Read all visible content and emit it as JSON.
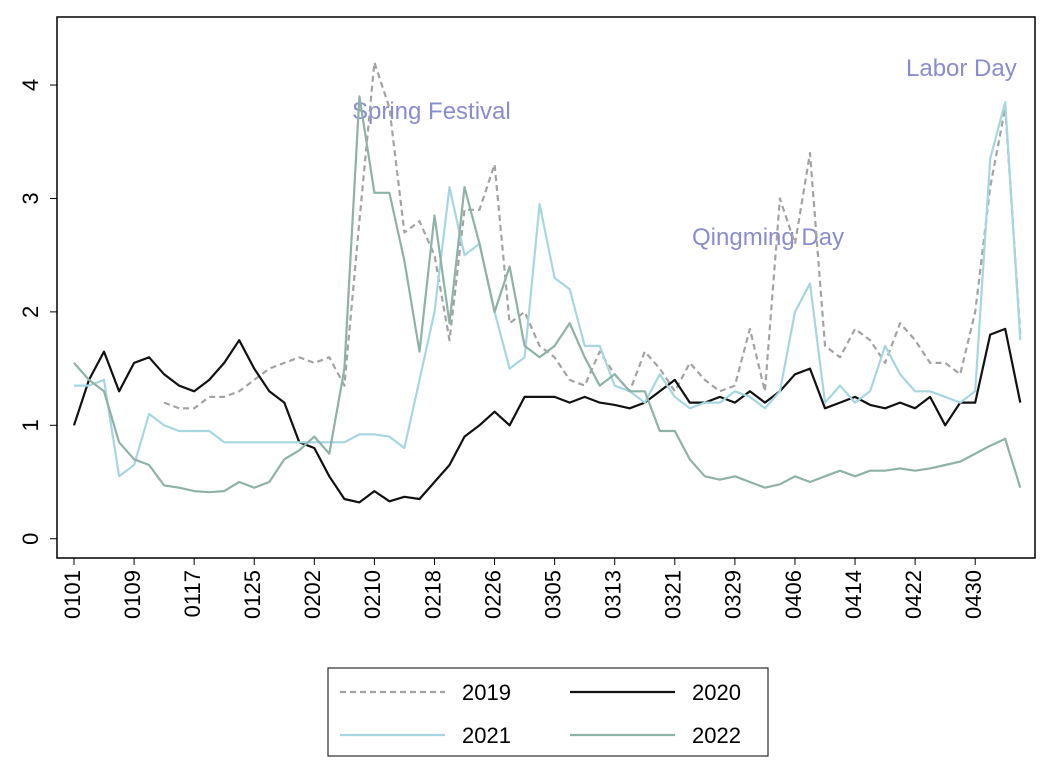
{
  "chart_data": {
    "type": "line",
    "categories": [
      "0101",
      null,
      null,
      null,
      "0109",
      null,
      null,
      null,
      "0117",
      null,
      null,
      null,
      "0125",
      null,
      null,
      null,
      "0202",
      null,
      null,
      null,
      "0210",
      null,
      null,
      null,
      "0218",
      null,
      null,
      null,
      "0226",
      null,
      null,
      null,
      "0305",
      null,
      null,
      null,
      "0313",
      null,
      null,
      null,
      "0321",
      null,
      null,
      null,
      "0329",
      null,
      null,
      null,
      "0406",
      null,
      null,
      null,
      "0414",
      null,
      null,
      null,
      "0422",
      null,
      null,
      null,
      "0430",
      null,
      null,
      null
    ],
    "series": [
      {
        "name": "2019",
        "color": "#a3a3a3",
        "dashed": true,
        "values": [
          null,
          null,
          null,
          null,
          null,
          null,
          1.2,
          1.15,
          1.15,
          1.25,
          1.25,
          1.3,
          1.4,
          1.5,
          1.55,
          1.6,
          1.55,
          1.6,
          1.35,
          2.8,
          4.2,
          3.8,
          2.7,
          2.8,
          2.5,
          1.75,
          2.9,
          2.9,
          3.3,
          1.9,
          2.0,
          1.7,
          1.6,
          1.4,
          1.35,
          1.65,
          1.45,
          1.3,
          1.65,
          1.5,
          1.3,
          1.55,
          1.4,
          1.3,
          1.35,
          1.85,
          1.3,
          3.0,
          2.6,
          3.4,
          1.7,
          1.6,
          1.85,
          1.75,
          1.55,
          1.9,
          1.75,
          1.55,
          1.55,
          1.45,
          2.0,
          3.1,
          3.8,
          1.8
        ]
      },
      {
        "name": "2020",
        "color": "#111111",
        "dashed": false,
        "values": [
          1.0,
          1.4,
          1.65,
          1.3,
          1.55,
          1.6,
          1.45,
          1.35,
          1.3,
          1.4,
          1.55,
          1.75,
          1.5,
          1.3,
          1.2,
          0.85,
          0.8,
          0.55,
          0.35,
          0.32,
          0.42,
          0.33,
          0.37,
          0.35,
          0.5,
          0.65,
          0.9,
          1.0,
          1.12,
          1.0,
          1.25,
          1.25,
          1.25,
          1.2,
          1.25,
          1.2,
          1.18,
          1.15,
          1.2,
          1.3,
          1.4,
          1.2,
          1.2,
          1.25,
          1.2,
          1.3,
          1.2,
          1.3,
          1.45,
          1.5,
          1.15,
          1.2,
          1.25,
          1.18,
          1.15,
          1.2,
          1.15,
          1.25,
          1.0,
          1.2,
          1.2,
          1.8,
          1.85,
          1.2
        ]
      },
      {
        "name": "2021",
        "color": "#a6d6e0",
        "dashed": false,
        "values": [
          1.35,
          1.35,
          1.4,
          0.55,
          0.65,
          1.1,
          1.0,
          0.95,
          0.95,
          0.95,
          0.85,
          0.85,
          0.85,
          0.85,
          0.85,
          0.85,
          0.85,
          0.85,
          0.85,
          0.92,
          0.92,
          0.9,
          0.8,
          1.4,
          2.0,
          3.1,
          2.5,
          2.6,
          2.0,
          1.5,
          1.6,
          2.95,
          2.3,
          2.2,
          1.7,
          1.7,
          1.35,
          1.3,
          1.2,
          1.45,
          1.25,
          1.15,
          1.2,
          1.2,
          1.3,
          1.25,
          1.15,
          1.3,
          2.0,
          2.25,
          1.2,
          1.35,
          1.2,
          1.3,
          1.7,
          1.45,
          1.3,
          1.3,
          1.25,
          1.2,
          1.3,
          3.35,
          3.85,
          1.75
        ]
      },
      {
        "name": "2022",
        "color": "#8fb2a6",
        "dashed": false,
        "values": [
          1.55,
          1.4,
          1.3,
          0.85,
          0.7,
          0.65,
          0.47,
          0.45,
          0.42,
          0.41,
          0.42,
          0.5,
          0.45,
          0.5,
          0.7,
          0.78,
          0.9,
          0.75,
          1.5,
          3.9,
          3.05,
          3.05,
          2.45,
          1.65,
          2.85,
          1.9,
          3.1,
          2.6,
          2.0,
          2.4,
          1.7,
          1.6,
          1.7,
          1.9,
          1.6,
          1.35,
          1.45,
          1.3,
          1.3,
          0.95,
          0.95,
          0.7,
          0.55,
          0.52,
          0.55,
          0.5,
          0.45,
          0.48,
          0.55,
          0.5,
          0.55,
          0.6,
          0.55,
          0.6,
          0.6,
          0.62,
          0.6,
          0.62,
          0.65,
          0.68,
          0.75,
          0.82,
          0.88,
          0.45
        ]
      }
    ],
    "annotations": [
      "Spring Festival",
      "Qingming Day",
      "Labor Day"
    ],
    "ylim": [
      -0.17,
      4.6
    ],
    "yticks": [
      0,
      1,
      2,
      3,
      4
    ],
    "grid": false
  }
}
